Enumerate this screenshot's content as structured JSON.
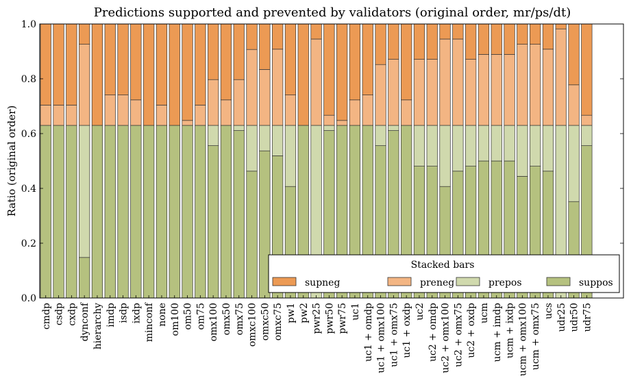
{
  "chart_data": {
    "type": "bar",
    "stacked": true,
    "title": "Predictions supported and prevented by validators (original order, mr/ps/dt)",
    "xlabel": "",
    "ylabel": "Ratio (original order)",
    "ylim": [
      0.0,
      1.0
    ],
    "yticks": [
      "0.0",
      "0.2",
      "0.4",
      "0.6",
      "0.8",
      "1.0"
    ],
    "grid": false,
    "legend": {
      "title": "Stacked bars",
      "placement": "lower-right",
      "columns": 4
    },
    "categories": [
      "cmdp",
      "csdp",
      "cxdp",
      "dynconf",
      "hierarchy",
      "imdp",
      "isdp",
      "ixdp",
      "minconf",
      "none",
      "om100",
      "om50",
      "om75",
      "omx100",
      "omx50",
      "omx75",
      "omxc100",
      "omxc50",
      "omxc75",
      "pw1",
      "pw2",
      "pwr25",
      "pwr50",
      "pwr75",
      "uc1",
      "uc1 + omdp",
      "uc1 + omx100",
      "uc1 + omx75",
      "uc1 + oxdp",
      "uc2",
      "uc2 + omdp",
      "uc2 + omx100",
      "uc2 + omx75",
      "uc2 + oxdp",
      "ucm",
      "ucm + imdp",
      "ucm + ixdp",
      "ucm + omx100",
      "ucm + omx75",
      "ucs",
      "udr25",
      "udr50",
      "udr75"
    ],
    "series": [
      {
        "name": "suppos",
        "color": "#b5c17f",
        "values": [
          0.63,
          0.63,
          0.63,
          0.148,
          0.63,
          0.63,
          0.63,
          0.63,
          0.63,
          0.63,
          0.63,
          0.63,
          0.63,
          0.556,
          0.63,
          0.611,
          0.463,
          0.537,
          0.519,
          0.407,
          0.63,
          0.0,
          0.611,
          0.63,
          0.63,
          0.63,
          0.556,
          0.611,
          0.63,
          0.481,
          0.481,
          0.407,
          0.463,
          0.481,
          0.5,
          0.5,
          0.5,
          0.444,
          0.481,
          0.463,
          0.0,
          0.352,
          0.556
        ]
      },
      {
        "name": "prepos",
        "color": "#d0d9ad",
        "values": [
          0.0,
          0.0,
          0.0,
          0.482,
          0.0,
          0.0,
          0.0,
          0.0,
          0.0,
          0.0,
          0.0,
          0.0,
          0.0,
          0.074,
          0.0,
          0.019,
          0.167,
          0.093,
          0.111,
          0.223,
          0.0,
          0.63,
          0.019,
          0.0,
          0.0,
          0.0,
          0.074,
          0.019,
          0.0,
          0.149,
          0.149,
          0.223,
          0.167,
          0.149,
          0.13,
          0.13,
          0.13,
          0.186,
          0.149,
          0.167,
          0.63,
          0.278,
          0.074
        ]
      },
      {
        "name": "preneg",
        "color": "#f3b583",
        "values": [
          0.074,
          0.074,
          0.074,
          0.296,
          0.0,
          0.111,
          0.111,
          0.093,
          0.0,
          0.074,
          0.0,
          0.018,
          0.074,
          0.167,
          0.093,
          0.167,
          0.277,
          0.204,
          0.278,
          0.111,
          0.0,
          0.315,
          0.037,
          0.018,
          0.093,
          0.111,
          0.222,
          0.241,
          0.093,
          0.241,
          0.241,
          0.315,
          0.315,
          0.241,
          0.259,
          0.259,
          0.259,
          0.296,
          0.296,
          0.278,
          0.352,
          0.148,
          0.037
        ]
      },
      {
        "name": "supneg",
        "color": "#ec9a54",
        "values": [
          0.296,
          0.296,
          0.296,
          0.074,
          0.37,
          0.259,
          0.259,
          0.277,
          0.37,
          0.296,
          0.37,
          0.352,
          0.296,
          0.203,
          0.277,
          0.203,
          0.093,
          0.166,
          0.092,
          0.259,
          0.37,
          0.055,
          0.333,
          0.352,
          0.277,
          0.259,
          0.148,
          0.129,
          0.277,
          0.129,
          0.129,
          0.055,
          0.055,
          0.129,
          0.111,
          0.111,
          0.111,
          0.074,
          0.074,
          0.092,
          0.018,
          0.222,
          0.333
        ]
      }
    ]
  }
}
